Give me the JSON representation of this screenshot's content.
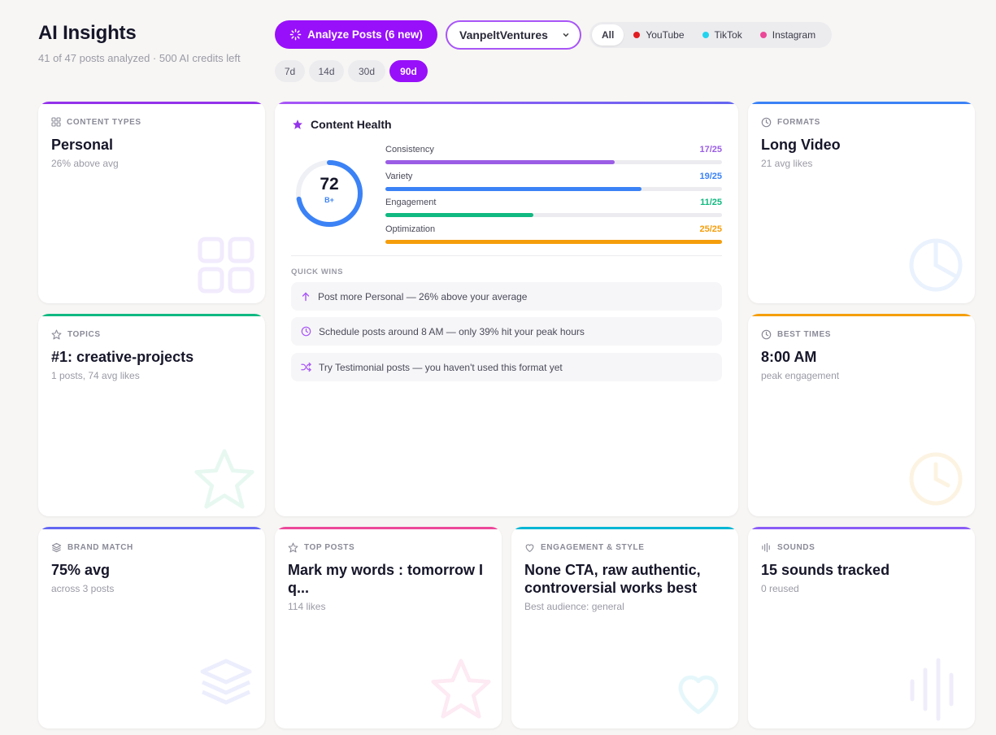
{
  "header": {
    "title": "AI Insights",
    "subtitle": "41 of 47 posts analyzed  · 500 AI credits left",
    "analyze_label": "Analyze Posts (6 new)",
    "account": "VanpeltVentures",
    "platforms": [
      {
        "label": "All",
        "active": true,
        "color": ""
      },
      {
        "label": "YouTube",
        "active": false,
        "color": "#e11d22"
      },
      {
        "label": "TikTok",
        "active": false,
        "color": "#22d3ee"
      },
      {
        "label": "Instagram",
        "active": false,
        "color": "#ec4899"
      }
    ],
    "ranges": [
      {
        "label": "7d",
        "active": false
      },
      {
        "label": "14d",
        "active": false
      },
      {
        "label": "30d",
        "active": false
      },
      {
        "label": "90d",
        "active": true
      }
    ]
  },
  "cards": {
    "content_types": {
      "label": "CONTENT TYPES",
      "value": "Personal",
      "sub": "26% above avg",
      "accent": "#9333ea",
      "icon": "grid-icon"
    },
    "topics": {
      "label": "TOPICS",
      "value": "#1: creative-projects",
      "sub": "1 posts, 74 avg likes",
      "accent": "#10b981",
      "icon": "star-icon"
    },
    "formats": {
      "label": "FORMATS",
      "value": "Long Video",
      "sub": "21 avg likes",
      "accent": "#3b82f6",
      "icon": "pie-clock-icon"
    },
    "best_times": {
      "label": "BEST TIMES",
      "value": "8:00 AM",
      "sub": "peak engagement",
      "accent": "#f59e0b",
      "icon": "clock-icon"
    },
    "brand_match": {
      "label": "BRAND MATCH",
      "value": "75% avg",
      "sub": "across 3 posts",
      "accent": "#6366f1",
      "icon": "layers-icon"
    },
    "top_posts": {
      "label": "TOP POSTS",
      "value": "Mark my words : tomorrow I q...",
      "sub": "114 likes",
      "accent": "#ec4899",
      "icon": "star-icon"
    },
    "engagement_style": {
      "label": "ENGAGEMENT & STYLE",
      "value": "None CTA, raw authentic, controversial works best",
      "sub": "Best audience: general",
      "accent": "#06b6d4",
      "icon": "heart-icon"
    },
    "sounds": {
      "label": "SOUNDS",
      "value": "15 sounds tracked",
      "sub": "0 reused",
      "accent": "#8b5cf6",
      "icon": "soundwave-icon"
    }
  },
  "health": {
    "title": "Content Health",
    "score": 72,
    "score_max": 100,
    "grade": "B+",
    "colors": {
      "ring": "#3b82f6",
      "ring_track": "#eef0f5",
      "accent_gradient": [
        "#a855f7",
        "#6366f1"
      ]
    },
    "metrics": [
      {
        "name": "Consistency",
        "value": 17,
        "max": 25,
        "display": "17/25",
        "color": "#9b5de5"
      },
      {
        "name": "Variety",
        "value": 19,
        "max": 25,
        "display": "19/25",
        "color": "#3b82f6"
      },
      {
        "name": "Engagement",
        "value": 11,
        "max": 25,
        "display": "11/25",
        "color": "#10b981"
      },
      {
        "name": "Optimization",
        "value": 25,
        "max": 25,
        "display": "25/25",
        "color": "#f59e0b"
      }
    ],
    "quick_wins_label": "QUICK WINS",
    "quick_wins": [
      {
        "text": "Post more Personal — 26% above your average",
        "icon": "arrow-up-icon"
      },
      {
        "text": "Schedule posts around 8 AM — only 39% hit your peak hours",
        "icon": "clock-icon"
      },
      {
        "text": "Try Testimonial posts — you haven't used this format yet",
        "icon": "shuffle-icon"
      }
    ]
  }
}
